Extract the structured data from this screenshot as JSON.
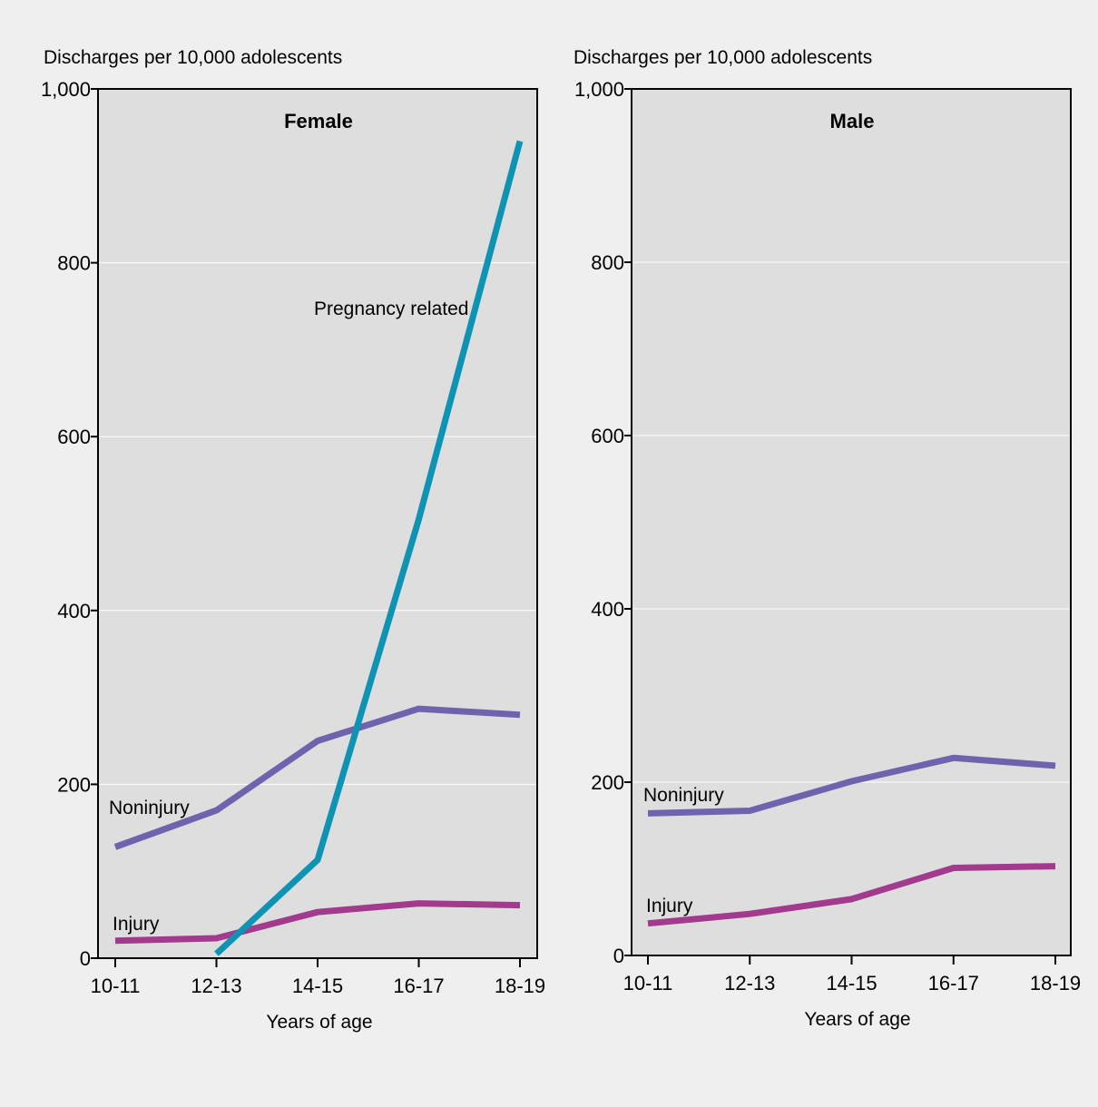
{
  "chart_data": [
    {
      "type": "line",
      "title": "Female",
      "ylabel": "Discharges per 10,000 adolescents",
      "xlabel": "Years of age",
      "categories": [
        "10-11",
        "12-13",
        "14-15",
        "16-17",
        "18-19"
      ],
      "yticks": [
        0,
        200,
        400,
        600,
        800,
        1000
      ],
      "ytick_labels": [
        "0",
        "200",
        "400",
        "600",
        "800",
        "1,000"
      ],
      "ylim": [
        0,
        1000
      ],
      "grid": true,
      "series": [
        {
          "name": "Noninjury",
          "color": "#6f63ad",
          "values": [
            128,
            170,
            250,
            287,
            280
          ]
        },
        {
          "name": "Injury",
          "color": "#a23a8e",
          "values": [
            20,
            23,
            53,
            63,
            61
          ]
        },
        {
          "name": "Pregnancy related",
          "color": "#0f93b3",
          "values": [
            null,
            5,
            113,
            505,
            940
          ]
        }
      ]
    },
    {
      "type": "line",
      "title": "Male",
      "ylabel": "Discharges per 10,000 adolescents",
      "xlabel": "Years of age",
      "categories": [
        "10-11",
        "12-13",
        "14-15",
        "16-17",
        "18-19"
      ],
      "yticks": [
        0,
        200,
        400,
        600,
        800,
        1000
      ],
      "ytick_labels": [
        "0",
        "200",
        "400",
        "600",
        "800",
        "1,000"
      ],
      "ylim": [
        0,
        1000
      ],
      "grid": true,
      "series": [
        {
          "name": "Noninjury",
          "color": "#6f63ad",
          "values": [
            164,
            167,
            201,
            228,
            219
          ]
        },
        {
          "name": "Injury",
          "color": "#a23a8e",
          "values": [
            37,
            48,
            65,
            101,
            103
          ]
        }
      ]
    }
  ]
}
